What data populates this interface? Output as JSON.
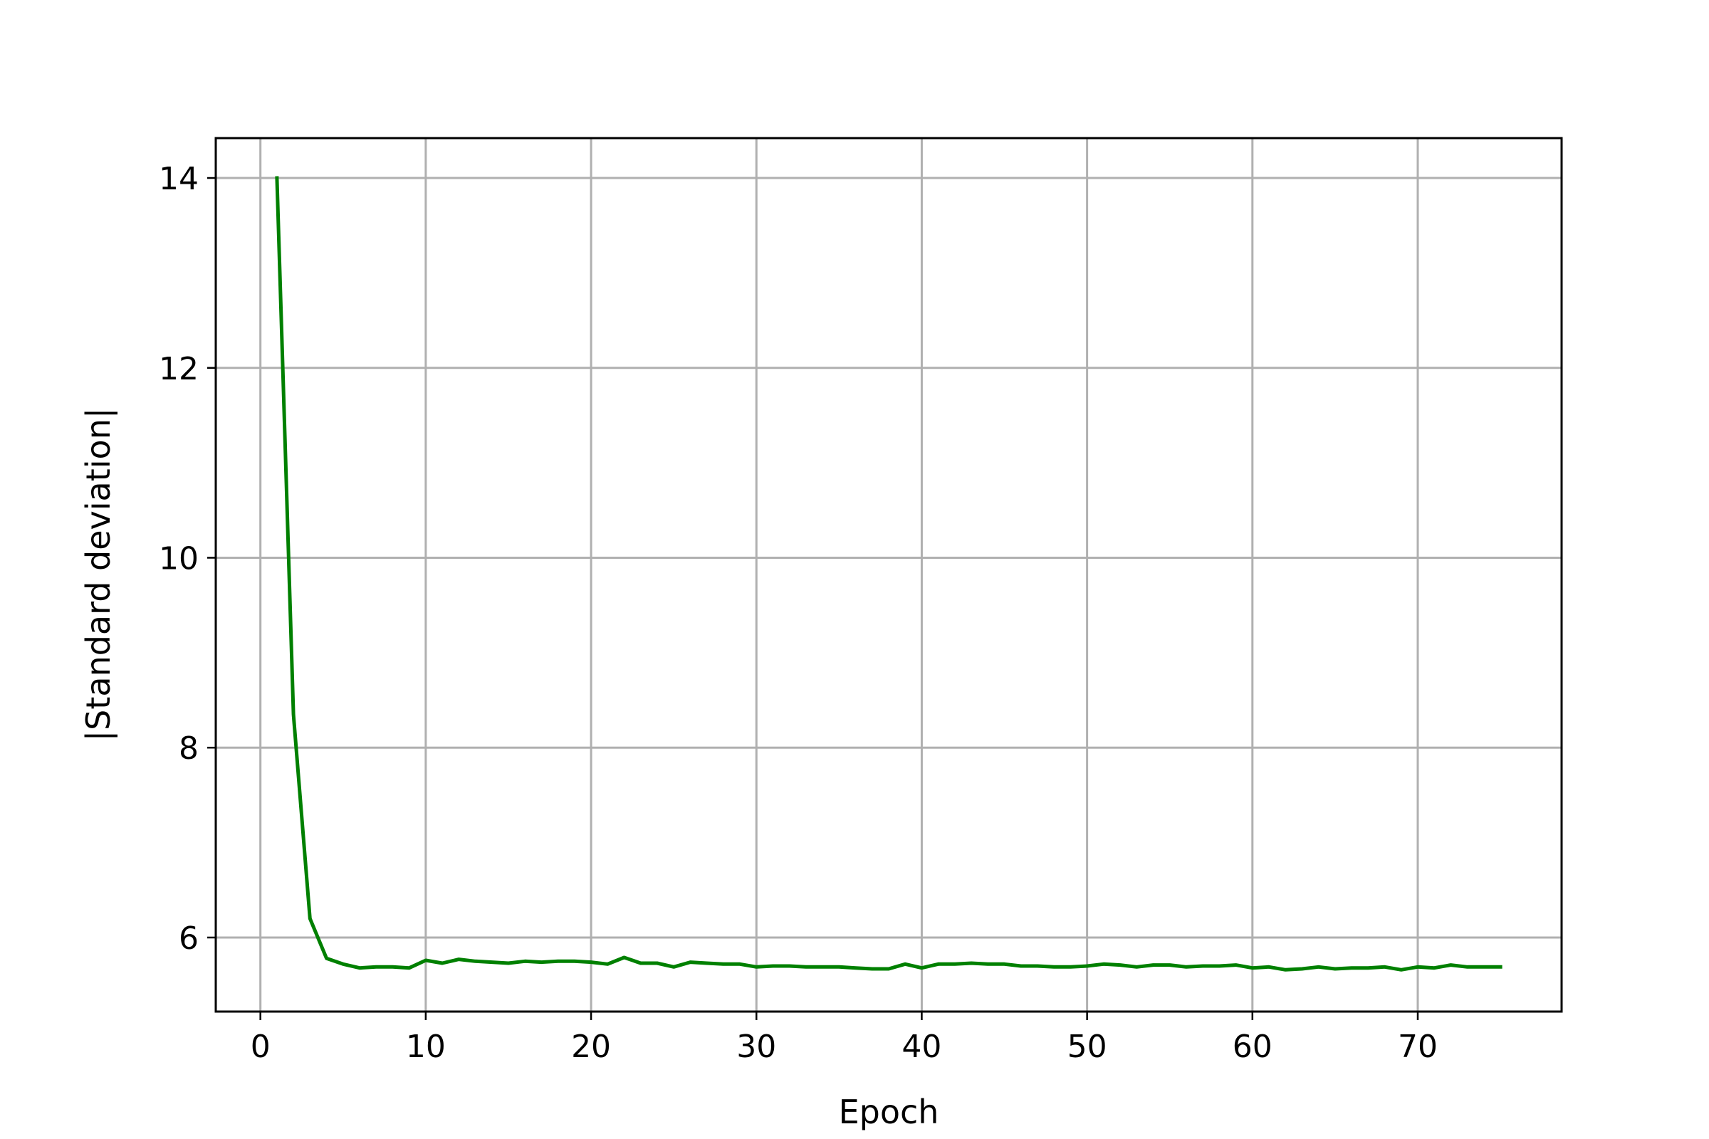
{
  "chart_data": {
    "type": "line",
    "title": "",
    "xlabel": "Epoch",
    "ylabel": "|Standard deviation|",
    "xlim": [
      -2.7,
      78.7
    ],
    "ylim": [
      5.22,
      14.42
    ],
    "xticks": [
      0,
      10,
      20,
      30,
      40,
      50,
      60,
      70
    ],
    "yticks": [
      6,
      8,
      10,
      12,
      14
    ],
    "grid": true,
    "legend": "none",
    "series": [
      {
        "color": "#008000",
        "x": [
          1,
          2,
          3,
          4,
          5,
          6,
          7,
          8,
          9,
          10,
          11,
          12,
          13,
          14,
          15,
          16,
          17,
          18,
          19,
          20,
          21,
          22,
          23,
          24,
          25,
          26,
          27,
          28,
          29,
          30,
          31,
          32,
          33,
          34,
          35,
          36,
          37,
          38,
          39,
          40,
          41,
          42,
          43,
          44,
          45,
          46,
          47,
          48,
          49,
          50,
          51,
          52,
          53,
          54,
          55,
          56,
          57,
          58,
          59,
          60,
          61,
          62,
          63,
          64,
          65,
          66,
          67,
          68,
          69,
          70,
          71,
          72,
          73,
          74,
          75
        ],
        "y": [
          14.0,
          8.35,
          6.2,
          5.78,
          5.72,
          5.68,
          5.69,
          5.69,
          5.68,
          5.76,
          5.73,
          5.77,
          5.75,
          5.74,
          5.73,
          5.75,
          5.74,
          5.75,
          5.75,
          5.74,
          5.72,
          5.79,
          5.73,
          5.73,
          5.69,
          5.74,
          5.73,
          5.72,
          5.72,
          5.69,
          5.7,
          5.7,
          5.69,
          5.69,
          5.69,
          5.68,
          5.67,
          5.67,
          5.72,
          5.68,
          5.72,
          5.72,
          5.73,
          5.72,
          5.72,
          5.7,
          5.7,
          5.69,
          5.69,
          5.7,
          5.72,
          5.71,
          5.69,
          5.71,
          5.71,
          5.69,
          5.7,
          5.7,
          5.71,
          5.68,
          5.69,
          5.66,
          5.67,
          5.69,
          5.67,
          5.68,
          5.68,
          5.69,
          5.66,
          5.69,
          5.68,
          5.71,
          5.69,
          5.69,
          5.69
        ]
      }
    ]
  }
}
